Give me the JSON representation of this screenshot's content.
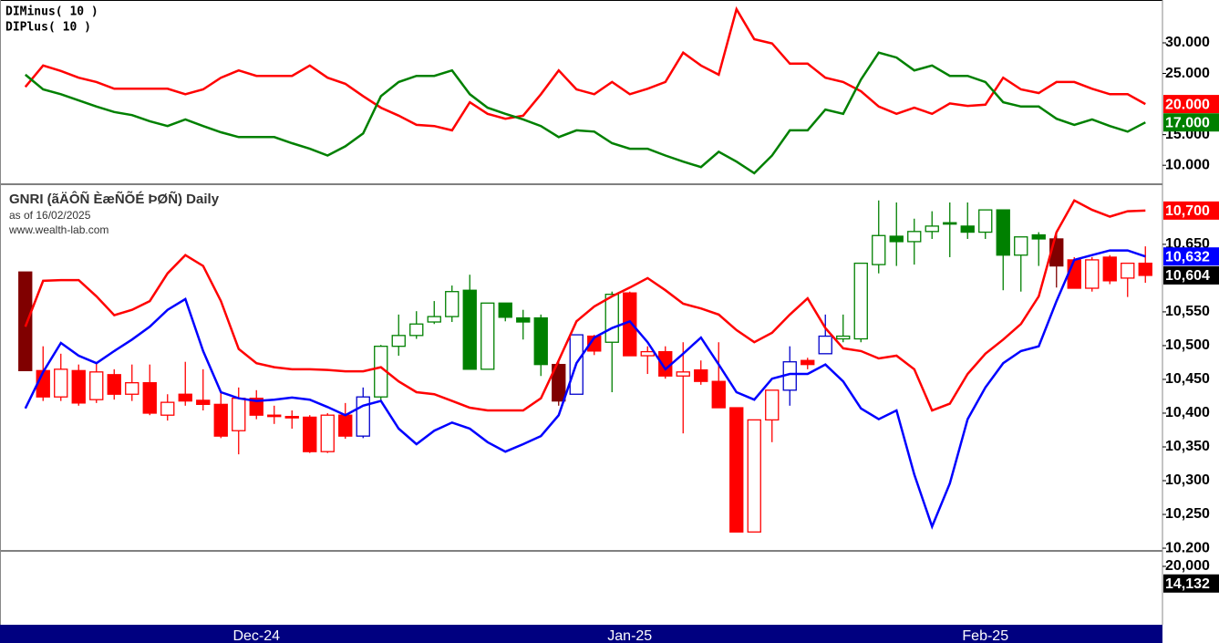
{
  "chart_data": [
    {
      "type": "line",
      "series": [
        {
          "name": "DIMinus( 10 )",
          "color": "#ff0000",
          "last_label": "20.000",
          "values": [
            22.8,
            26.3,
            25.4,
            24.3,
            23.6,
            22.5,
            22.5,
            22.5,
            22.5,
            21.6,
            22.4,
            24.3,
            25.5,
            24.6,
            24.6,
            24.6,
            26.3,
            24.3,
            23.3,
            21.3,
            19.4,
            18.1,
            16.6,
            16.4,
            15.7,
            20.3,
            18.4,
            17.6,
            18.1,
            21.6,
            25.5,
            22.4,
            21.6,
            23.6,
            21.6,
            22.5,
            23.6,
            28.4,
            26.3,
            24.8,
            35.5,
            30.6,
            29.9,
            26.6,
            26.6,
            24.3,
            23.6,
            22.1,
            19.6,
            18.4,
            19.4,
            18.4,
            20.1,
            19.7,
            19.9,
            24.3,
            22.4,
            21.8,
            23.6,
            23.6,
            22.5,
            21.6,
            21.6,
            20.0
          ]
        },
        {
          "name": "DIPlus( 10 )",
          "color": "#008000",
          "last_label": "17.000",
          "values": [
            24.8,
            22.4,
            21.6,
            20.6,
            19.6,
            18.7,
            18.2,
            17.2,
            16.4,
            17.5,
            16.4,
            15.4,
            14.6,
            14.6,
            14.6,
            13.6,
            12.7,
            11.6,
            13.1,
            15.2,
            21.3,
            23.6,
            24.6,
            24.6,
            25.5,
            21.6,
            19.4,
            18.4,
            17.5,
            16.4,
            14.6,
            15.7,
            15.5,
            13.6,
            12.7,
            12.7,
            11.6,
            10.6,
            9.7,
            12.2,
            10.6,
            8.7,
            11.6,
            15.7,
            15.7,
            19.1,
            18.4,
            24.0,
            28.4,
            27.6,
            25.5,
            26.3,
            24.6,
            24.6,
            23.6,
            20.3,
            19.6,
            19.6,
            17.6,
            16.6,
            17.5,
            16.4,
            15.5,
            17.0
          ]
        }
      ],
      "ylim": [
        6.9,
        37.0
      ],
      "yticks": [
        {
          "value": 10,
          "label": "10.000"
        },
        {
          "value": 15,
          "label": "15.000"
        },
        {
          "value": 25,
          "label": "25.000"
        },
        {
          "value": 30,
          "label": "30.000"
        }
      ]
    },
    {
      "type": "candlestick",
      "title": "GNRI (ãÄÔÑ ÈæÑÕÉ ÞØÑ) Daily",
      "subtitle": "as of 16/02/2025",
      "source": "www.wealth-lab.com",
      "open": [
        10609,
        10463,
        10424,
        10463,
        10420,
        10457,
        10428,
        10445,
        10397,
        10428,
        10419,
        10413,
        10374,
        10422,
        10397,
        10395,
        10394,
        10343,
        10397,
        10366,
        10424,
        10499,
        10515,
        10535,
        10543,
        10582,
        10465,
        10563,
        10541,
        10541,
        10472,
        10428,
        10514,
        10505,
        10578,
        10485,
        10491,
        10455,
        10464,
        10447,
        10408,
        10224,
        10390,
        10434,
        10478,
        10488,
        10510,
        10510,
        10620,
        10662,
        10654,
        10669,
        10682,
        10677,
        10668,
        10701,
        10634,
        10664,
        10658,
        10627,
        10585,
        10631,
        10600,
        10622
      ],
      "high": [
        10609,
        10499,
        10488,
        10472,
        10475,
        10465,
        10472,
        10472,
        10428,
        10476,
        10465,
        10431,
        10438,
        10434,
        10411,
        10404,
        10397,
        10400,
        10415,
        10438,
        10501,
        10546,
        10551,
        10566,
        10589,
        10605,
        10563,
        10563,
        10553,
        10546,
        10478,
        10516,
        10516,
        10580,
        10580,
        10499,
        10499,
        10505,
        10478,
        10505,
        10408,
        10390,
        10434,
        10499,
        10482,
        10546,
        10546,
        10622,
        10715,
        10712,
        10688,
        10699,
        10712,
        10712,
        10701,
        10701,
        10661,
        10668,
        10668,
        10631,
        10631,
        10634,
        10622,
        10647
      ],
      "low": [
        10463,
        10418,
        10418,
        10411,
        10415,
        10420,
        10418,
        10397,
        10389,
        10411,
        10404,
        10363,
        10339,
        10391,
        10384,
        10377,
        10341,
        10341,
        10362,
        10363,
        10418,
        10485,
        10510,
        10532,
        10535,
        10465,
        10465,
        10536,
        10509,
        10455,
        10411,
        10428,
        10486,
        10431,
        10485,
        10458,
        10451,
        10370,
        10442,
        10408,
        10224,
        10224,
        10357,
        10411,
        10465,
        10488,
        10505,
        10505,
        10607,
        10618,
        10620,
        10658,
        10631,
        10658,
        10658,
        10582,
        10580,
        10618,
        10586,
        10585,
        10580,
        10591,
        10572,
        10593
      ],
      "close": [
        10463,
        10424,
        10465,
        10415,
        10461,
        10428,
        10445,
        10400,
        10416,
        10418,
        10413,
        10366,
        10422,
        10397,
        10396,
        10394,
        10343,
        10397,
        10366,
        10424,
        10499,
        10515,
        10532,
        10543,
        10580,
        10465,
        10563,
        10542,
        10535,
        10472,
        10418,
        10516,
        10492,
        10576,
        10485,
        10491,
        10455,
        10461,
        10447,
        10408,
        10224,
        10390,
        10434,
        10476,
        10472,
        10514,
        10514,
        10622,
        10663,
        10654,
        10669,
        10677,
        10680,
        10668,
        10701,
        10634,
        10661,
        10658,
        10618,
        10585,
        10627,
        10596,
        10622,
        10604
      ],
      "colors": [
        "#800000",
        "#ff0000",
        "#ff0000",
        "#ff0000",
        "#ff0000",
        "#ff0000",
        "#ff0000",
        "#ff0000",
        "#ff0000",
        "#ff0000",
        "#ff0000",
        "#ff0000",
        "#ff0000",
        "#ff0000",
        "#ff0000",
        "#ff0000",
        "#ff0000",
        "#ff0000",
        "#ff0000",
        "#0000cc",
        "#008000",
        "#008000",
        "#008000",
        "#008000",
        "#008000",
        "#008000",
        "#008000",
        "#008000",
        "#008000",
        "#008000",
        "#800000",
        "#0000cc",
        "#ff0000",
        "#008000",
        "#ff0000",
        "#ff0000",
        "#ff0000",
        "#ff0000",
        "#ff0000",
        "#ff0000",
        "#ff0000",
        "#ff0000",
        "#ff0000",
        "#0000cc",
        "#ff0000",
        "#0000cc",
        "#008000",
        "#008000",
        "#008000",
        "#008000",
        "#008000",
        "#008000",
        "#008000",
        "#008000",
        "#008000",
        "#008000",
        "#008000",
        "#008000",
        "#800000",
        "#ff0000",
        "#ff0000",
        "#ff0000",
        "#ff0000",
        "#ff0000"
      ],
      "close_label": "10,604",
      "bands": [
        {
          "color": "#ff0000",
          "last_label": "10,700",
          "values": [
            10528,
            10596,
            10597,
            10597,
            10573,
            10545,
            10553,
            10566,
            10607,
            10634,
            10618,
            10566,
            10495,
            10474,
            10468,
            10465,
            10465,
            10464,
            10462,
            10462,
            10468,
            10447,
            10431,
            10428,
            10418,
            10408,
            10404,
            10404,
            10404,
            10422,
            10478,
            10536,
            10558,
            10573,
            10586,
            10600,
            10582,
            10562,
            10555,
            10546,
            10523,
            10505,
            10519,
            10546,
            10570,
            10526,
            10496,
            10492,
            10481,
            10485,
            10465,
            10404,
            10414,
            10458,
            10488,
            10509,
            10532,
            10573,
            10668,
            10715,
            10701,
            10691,
            10699,
            10700
          ]
        },
        {
          "color": "#0000ff",
          "last_label": "10,632",
          "values": [
            10407,
            10461,
            10504,
            10485,
            10474,
            10492,
            10509,
            10528,
            10553,
            10569,
            10492,
            10431,
            10422,
            10418,
            10420,
            10423,
            10420,
            10409,
            10397,
            10411,
            10418,
            10377,
            10354,
            10374,
            10386,
            10377,
            10357,
            10343,
            10354,
            10366,
            10397,
            10474,
            10512,
            10526,
            10536,
            10505,
            10465,
            10488,
            10512,
            10472,
            10431,
            10420,
            10451,
            10458,
            10458,
            10472,
            10447,
            10407,
            10391,
            10404,
            10309,
            10232,
            10296,
            10391,
            10438,
            10474,
            10492,
            10499,
            10566,
            10627,
            10634,
            10641,
            10641,
            10632
          ]
        }
      ],
      "ylim": [
        10196,
        10739
      ],
      "yticks": [
        {
          "value": 10200,
          "label": "10.200"
        },
        {
          "value": 10250,
          "label": "10,250"
        },
        {
          "value": 10300,
          "label": "10,300"
        },
        {
          "value": 10350,
          "label": "10,350"
        },
        {
          "value": 10400,
          "label": "10,400"
        },
        {
          "value": 10450,
          "label": "10,450"
        },
        {
          "value": 10500,
          "label": "10,500"
        },
        {
          "value": 10550,
          "label": "10,550"
        },
        {
          "value": 10650,
          "label": "10,650"
        }
      ],
      "xticks": [
        {
          "value": 13,
          "label": "Dec-24"
        },
        {
          "value": 34,
          "label": "Jan-25"
        },
        {
          "value": 54,
          "label": "Feb-25"
        }
      ]
    },
    {
      "type": "bar",
      "ylim": [
        0,
        25300
      ],
      "yticks": [
        {
          "value": 20000,
          "label": "20,000"
        }
      ],
      "last_value": 14132,
      "last_label": "14,132"
    }
  ]
}
